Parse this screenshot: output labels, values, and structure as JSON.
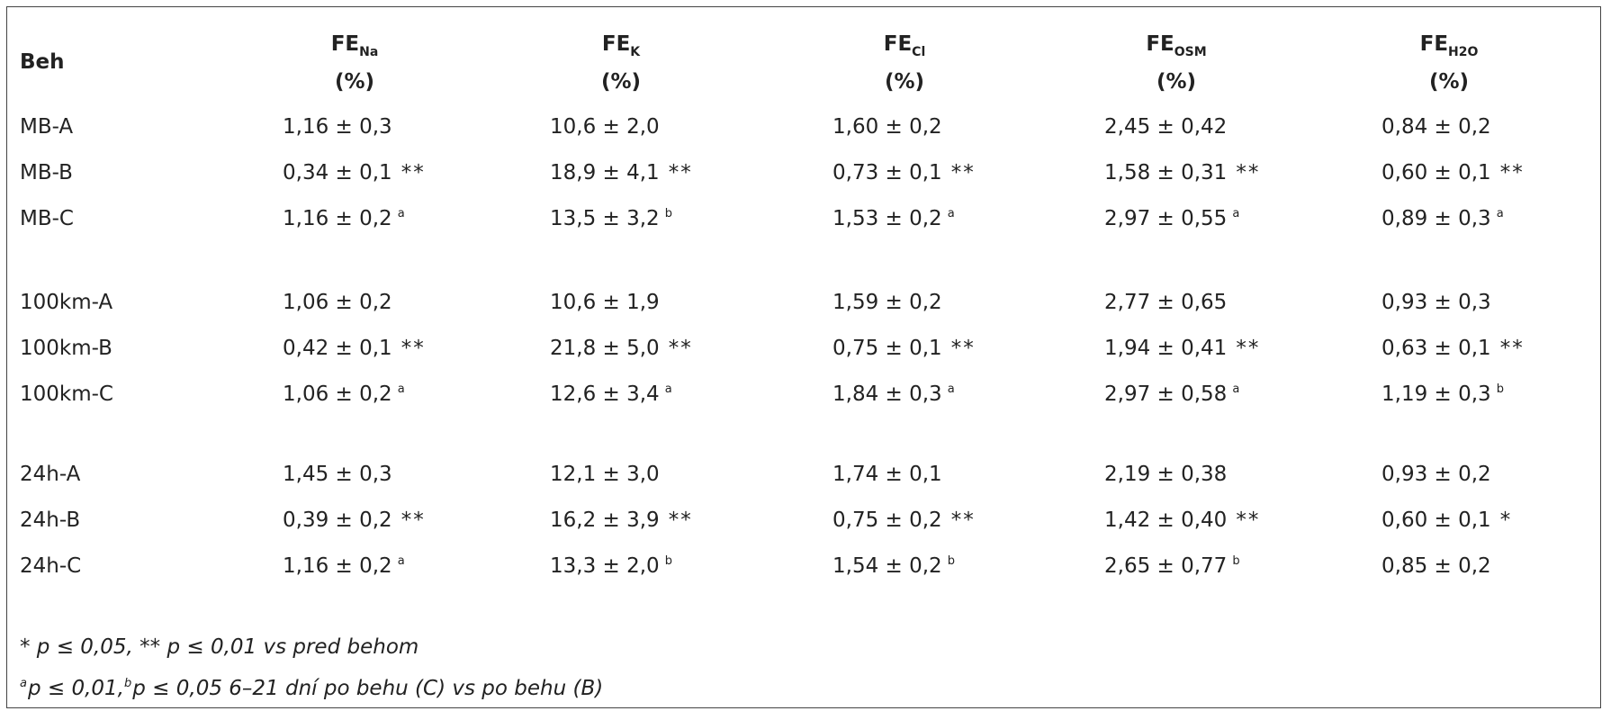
{
  "table": {
    "corner": "Beh",
    "columns": [
      {
        "main": "FE",
        "sub": "Na",
        "unit": "(%)"
      },
      {
        "main": "FE",
        "sub": "K",
        "unit": "(%)"
      },
      {
        "main": "FE",
        "sub": "Cl",
        "unit": "(%)"
      },
      {
        "main": "FE",
        "sub": "OSM",
        "unit": "(%)"
      },
      {
        "main": "FE",
        "sub": "H2O",
        "unit": "(%)"
      }
    ],
    "groups": [
      {
        "rows": [
          {
            "label": "MB-A",
            "cells": [
              {
                "value": "1,16 ± 0,3"
              },
              {
                "value": "10,6 ± 2,0"
              },
              {
                "value": "1,60 ± 0,2"
              },
              {
                "value": "2,45 ± 0,42"
              },
              {
                "value": "0,84 ± 0,2"
              }
            ]
          },
          {
            "label": "MB-B",
            "cells": [
              {
                "value": "0,34 ± 0,1",
                "stars": "**"
              },
              {
                "value": "18,9 ± 4,1",
                "stars": "**"
              },
              {
                "value": "0,73 ± 0,1",
                "stars": "**"
              },
              {
                "value": "1,58 ± 0,31",
                "stars": "**"
              },
              {
                "value": "0,60 ± 0,1",
                "stars": "**"
              }
            ]
          },
          {
            "label": "MB-C",
            "cells": [
              {
                "value": "1,16 ± 0,2",
                "sup": "a"
              },
              {
                "value": "13,5 ± 3,2",
                "sup": "b"
              },
              {
                "value": "1,53 ± 0,2",
                "sup": "a"
              },
              {
                "value": "2,97 ± 0,55",
                "sup": "a"
              },
              {
                "value": "0,89 ± 0,3",
                "sup": "a"
              }
            ]
          }
        ]
      },
      {
        "rows": [
          {
            "label": "100km-A",
            "cells": [
              {
                "value": "1,06 ± 0,2"
              },
              {
                "value": "10,6 ± 1,9"
              },
              {
                "value": "1,59 ± 0,2"
              },
              {
                "value": "2,77 ± 0,65"
              },
              {
                "value": "0,93 ± 0,3"
              }
            ]
          },
          {
            "label": "100km-B",
            "cells": [
              {
                "value": "0,42 ± 0,1",
                "stars": "**"
              },
              {
                "value": "21,8 ± 5,0",
                "stars": "**"
              },
              {
                "value": "0,75 ± 0,1",
                "stars": "**"
              },
              {
                "value": "1,94 ± 0,41",
                "stars": "**"
              },
              {
                "value": "0,63 ± 0,1",
                "stars": "**"
              }
            ]
          },
          {
            "label": "100km-C",
            "cells": [
              {
                "value": "1,06 ± 0,2",
                "sup": "a"
              },
              {
                "value": "12,6 ± 3,4",
                "sup": "a"
              },
              {
                "value": "1,84 ± 0,3",
                "sup": "a"
              },
              {
                "value": "2,97 ± 0,58",
                "sup": "a"
              },
              {
                "value": "1,19 ± 0,3",
                "sup": "b"
              }
            ]
          }
        ]
      },
      {
        "rows": [
          {
            "label": "24h-A",
            "cells": [
              {
                "value": "1,45 ± 0,3"
              },
              {
                "value": "12,1 ± 3,0"
              },
              {
                "value": "1,74 ± 0,1"
              },
              {
                "value": "2,19 ± 0,38"
              },
              {
                "value": "0,93 ± 0,2"
              }
            ]
          },
          {
            "label": "24h-B",
            "cells": [
              {
                "value": "0,39 ± 0,2",
                "stars": "**"
              },
              {
                "value": "16,2 ± 3,9",
                "stars": "**"
              },
              {
                "value": "0,75 ± 0,2",
                "stars": "**"
              },
              {
                "value": "1,42 ± 0,40",
                "stars": "**"
              },
              {
                "value": "0,60 ± 0,1",
                "stars": "*"
              }
            ]
          },
          {
            "label": "24h-C",
            "cells": [
              {
                "value": "1,16 ± 0,2",
                "sup": "a"
              },
              {
                "value": "13,3 ± 2,0",
                "sup": "b"
              },
              {
                "value": "1,54 ± 0,2",
                "sup": "b"
              },
              {
                "value": "2,65 ± 0,77",
                "sup": "b"
              },
              {
                "value": "0,85 ± 0,2"
              }
            ]
          }
        ]
      }
    ],
    "footnotes": [
      [
        {
          "text": "* p ≤ 0,05, ** p ≤ 0,01 vs pred behom"
        }
      ],
      [
        {
          "sup": "a"
        },
        {
          "text": "p ≤ 0,01,"
        },
        {
          "sup": "b"
        },
        {
          "text": "p ≤ 0,05 6–21 dní po behu (C) vs po behu (B)"
        }
      ]
    ]
  }
}
